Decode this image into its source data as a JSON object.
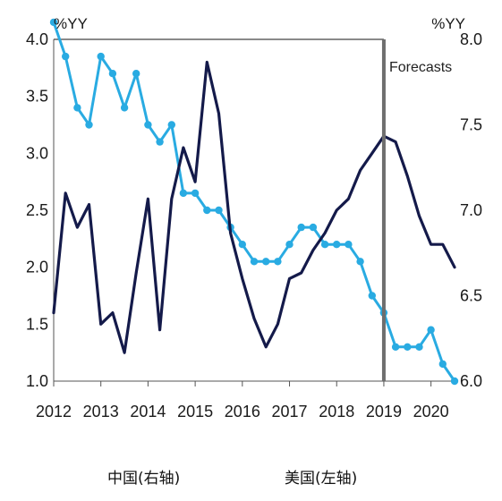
{
  "chart_data": {
    "type": "line",
    "title": "",
    "left_axis": {
      "unit": "%YY",
      "range": [
        1.0,
        4.0
      ],
      "ticks": [
        "1.0",
        "1.5",
        "2.0",
        "2.5",
        "3.0",
        "3.5",
        "4.0"
      ]
    },
    "right_axis": {
      "unit": "%YY",
      "range": [
        6.0,
        8.0
      ],
      "ticks": [
        "6.0",
        "6.5",
        "7.0",
        "7.5",
        "8.0"
      ]
    },
    "x_range": [
      2012.0,
      2020.5
    ],
    "x_ticks": [
      "2012",
      "2013",
      "2014",
      "2015",
      "2016",
      "2017",
      "2018",
      "2019",
      "2020"
    ],
    "forecast": {
      "label": "Forecasts",
      "x": 2019.0
    },
    "legend": [
      "中国(右轴)",
      "美国(左轴)"
    ],
    "series": [
      {
        "name": "中国(右轴)",
        "axis": "right",
        "color": "#29abe2",
        "markers": true,
        "x": [
          2012.0,
          2012.25,
          2012.5,
          2012.75,
          2013.0,
          2013.25,
          2013.5,
          2013.75,
          2014.0,
          2014.25,
          2014.5,
          2014.75,
          2015.0,
          2015.25,
          2015.5,
          2015.75,
          2016.0,
          2016.25,
          2016.5,
          2016.75,
          2017.0,
          2017.25,
          2017.5,
          2017.75,
          2018.0,
          2018.25,
          2018.5,
          2018.75,
          2019.0,
          2019.25,
          2019.5,
          2019.75,
          2020.0,
          2020.25,
          2020.5
        ],
        "values": [
          8.1,
          7.9,
          7.6,
          7.5,
          7.9,
          7.8,
          7.6,
          7.8,
          7.5,
          7.4,
          7.5,
          7.1,
          7.1,
          7.0,
          7.0,
          6.9,
          6.8,
          6.7,
          6.7,
          6.7,
          6.8,
          6.9,
          6.9,
          6.8,
          6.8,
          6.8,
          6.7,
          6.5,
          6.4,
          6.2,
          6.2,
          6.2,
          6.3,
          6.1,
          6.0
        ]
      },
      {
        "name": "美国(左轴)",
        "axis": "left",
        "color": "#141a4a",
        "markers": false,
        "x": [
          2012.0,
          2012.25,
          2012.5,
          2012.75,
          2013.0,
          2013.25,
          2013.5,
          2013.75,
          2014.0,
          2014.25,
          2014.5,
          2014.75,
          2015.0,
          2015.25,
          2015.5,
          2015.75,
          2016.0,
          2016.25,
          2016.5,
          2016.75,
          2017.0,
          2017.25,
          2017.5,
          2017.75,
          2018.0,
          2018.25,
          2018.5,
          2018.75,
          2019.0,
          2019.25,
          2019.5,
          2019.75,
          2020.0,
          2020.25,
          2020.5
        ],
        "values": [
          1.6,
          2.65,
          2.35,
          2.55,
          1.5,
          1.6,
          1.25,
          1.95,
          2.6,
          1.45,
          2.6,
          3.05,
          2.75,
          3.8,
          3.35,
          2.3,
          1.9,
          1.55,
          1.3,
          1.5,
          1.9,
          1.95,
          2.15,
          2.3,
          2.5,
          2.6,
          2.85,
          3.0,
          3.15,
          3.1,
          2.8,
          2.45,
          2.2,
          2.2,
          2.0
        ]
      }
    ]
  }
}
